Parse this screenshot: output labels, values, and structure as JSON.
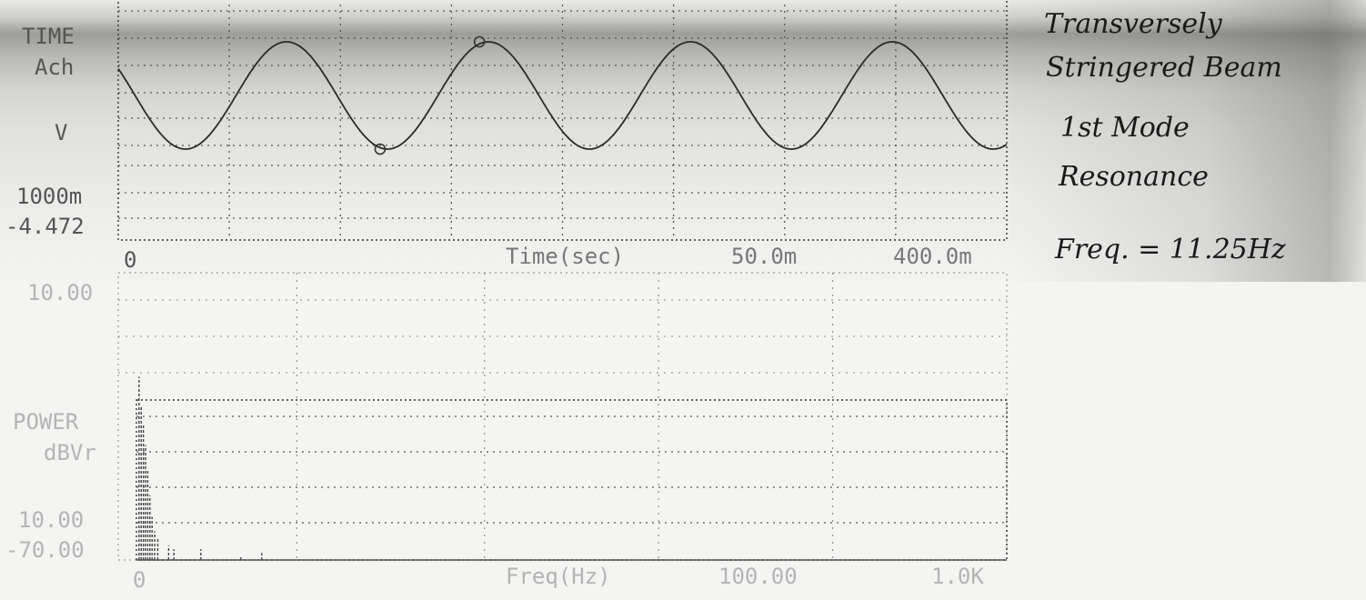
{
  "chart_data": [
    {
      "type": "line",
      "panel": "time",
      "ylabel_lines": [
        "TIME",
        "Ach",
        "V"
      ],
      "y_top_label": "1000m",
      "y_bottom_label": "-4.472",
      "x_start_label": "0",
      "xlabel": "Time(sec)",
      "x_mid_label": "50.0m",
      "x_end_label": "400.0m",
      "xlim": [
        0,
        0.4
      ],
      "ylim": [
        -1.0,
        1.0
      ],
      "cycles_shown": 4.4,
      "phase_start_deg": 150,
      "amplitude": 0.8,
      "markers": [
        {
          "x": 0.1179,
          "y": -0.8
        },
        {
          "x": 0.1626,
          "y": 0.8
        }
      ]
    },
    {
      "type": "bar",
      "panel": "power",
      "ylabel_lines": [
        "POWER",
        "dBVr"
      ],
      "y_top_label": "10.00",
      "y_bottom_label_1": "10.00",
      "y_bottom_label_2": "-70.00",
      "x_start_label": "0",
      "xlabel": "Freq(Hz)",
      "x_mid_label": "100.00",
      "x_end_label": "1.0K",
      "xlim": [
        0,
        100
      ],
      "ylim": [
        -70,
        10
      ],
      "spikes": [
        {
          "x": 0.3,
          "y": -19
        },
        {
          "x": 0.55,
          "y": -27
        },
        {
          "x": 0.8,
          "y": -32
        },
        {
          "x": 1.05,
          "y": -38
        },
        {
          "x": 1.3,
          "y": -45
        },
        {
          "x": 1.55,
          "y": -52
        },
        {
          "x": 1.8,
          "y": -58
        },
        {
          "x": 2.1,
          "y": -62
        },
        {
          "x": 2.45,
          "y": -64
        },
        {
          "x": 3.7,
          "y": -66
        },
        {
          "x": 4.3,
          "y": -67
        },
        {
          "x": 7.4,
          "y": -67
        },
        {
          "x": 12.0,
          "y": -69
        },
        {
          "x": 14.4,
          "y": -68
        }
      ]
    }
  ],
  "annotation": {
    "lines": [
      "Transversely",
      "Stringered Beam",
      "1st Mode",
      "Resonance",
      "Freq. = 11.25Hz"
    ]
  },
  "colors": {
    "trace": "#2a2a2a",
    "ink": "#1a1a1a"
  }
}
